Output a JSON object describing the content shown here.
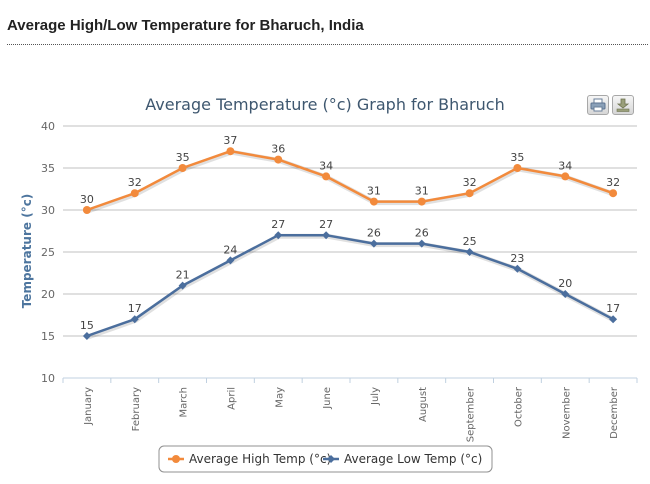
{
  "page": {
    "heading": "Average High/Low Temperature for Bharuch, India"
  },
  "toolbar": {
    "print_icon": "printer-icon",
    "export_icon": "download-icon"
  },
  "chart_data": {
    "type": "line",
    "title": "Average Temperature (°c) Graph for Bharuch",
    "xlabel": "",
    "ylabel": "Temperature (°c)",
    "ylim": [
      10,
      40
    ],
    "yticks": [
      10,
      15,
      20,
      25,
      30,
      35,
      40
    ],
    "grid": true,
    "legend_position": "bottom-center",
    "categories": [
      "January",
      "February",
      "March",
      "April",
      "May",
      "June",
      "July",
      "August",
      "September",
      "October",
      "November",
      "December"
    ],
    "series": [
      {
        "name": "Average High Temp (°c)",
        "color": "#f28a3c",
        "marker": "circle",
        "values": [
          30,
          32,
          35,
          37,
          36,
          34,
          31,
          31,
          32,
          35,
          34,
          32
        ]
      },
      {
        "name": "Average Low Temp (°c)",
        "color": "#4b6e9d",
        "marker": "diamond",
        "values": [
          15,
          17,
          21,
          24,
          27,
          27,
          26,
          26,
          25,
          23,
          20,
          17
        ]
      }
    ]
  }
}
